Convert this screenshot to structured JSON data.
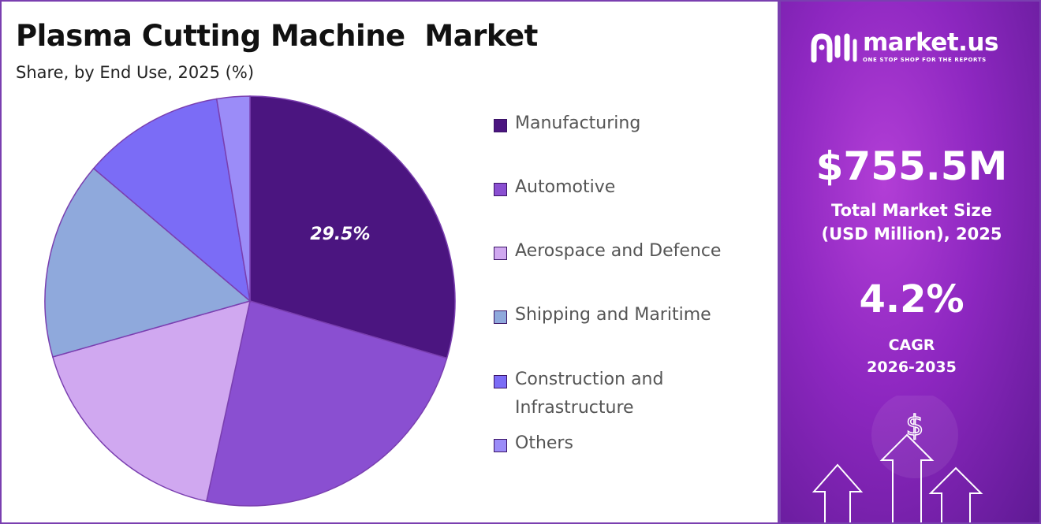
{
  "header": {
    "title": "Plasma Cutting Machine  Market",
    "subtitle": "Share, by End Use, 2025 (%)"
  },
  "chart_data": {
    "type": "pie",
    "title": "Plasma Cutting Machine  Market",
    "subtitle": "Share, by End Use, 2025 (%)",
    "categories": [
      "Manufacturing",
      "Automotive",
      "Aerospace and Defence",
      "Shipping and Maritime",
      "Construction and Infrastructure",
      "Others"
    ],
    "values": [
      29.5,
      23.9,
      17.2,
      15.6,
      11.2,
      2.6
    ],
    "colors": [
      "#4b1580",
      "#8a4fd1",
      "#d0a8f0",
      "#8fa9dc",
      "#7b6cf6",
      "#9b8cf8"
    ],
    "data_labels": [
      "29.5%"
    ],
    "legend_position": "right"
  },
  "sidebar": {
    "brand_name": "market.us",
    "brand_tagline": "ONE STOP SHOP FOR THE REPORTS",
    "market_value": "$755.5M",
    "market_label_line1": "Total Market Size",
    "market_label_line2": "(USD Million), 2025",
    "cagr_value": "4.2%",
    "cagr_label_line1": "CAGR",
    "cagr_label_line2": "2026-2035",
    "icons": [
      "market-us-logo-icon",
      "dollar-icon",
      "arrow-up-icon"
    ]
  }
}
